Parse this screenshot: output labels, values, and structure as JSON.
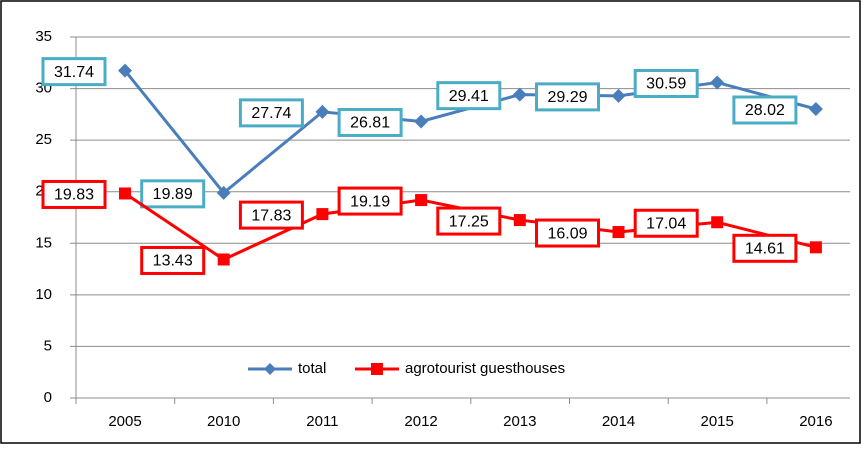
{
  "chart_data": {
    "type": "line",
    "categories": [
      "2005",
      "2010",
      "2011",
      "2012",
      "2013",
      "2014",
      "2015",
      "2016"
    ],
    "series": [
      {
        "name": "total",
        "color": "#4a7ebb",
        "label_border": "#4bacc6",
        "marker": "diamond",
        "values": [
          31.74,
          19.89,
          27.74,
          26.81,
          29.41,
          29.29,
          30.59,
          28.02
        ]
      },
      {
        "name": "agrotourist guesthouses",
        "color": "#ff0000",
        "label_border": "#ff0000",
        "marker": "square",
        "values": [
          19.83,
          13.43,
          17.83,
          19.19,
          17.25,
          16.09,
          17.04,
          14.61
        ]
      }
    ],
    "ylim": [
      0,
      35
    ],
    "yticks": [
      0,
      5,
      10,
      15,
      20,
      25,
      30,
      35
    ],
    "grid": true,
    "legend": "bottom"
  }
}
